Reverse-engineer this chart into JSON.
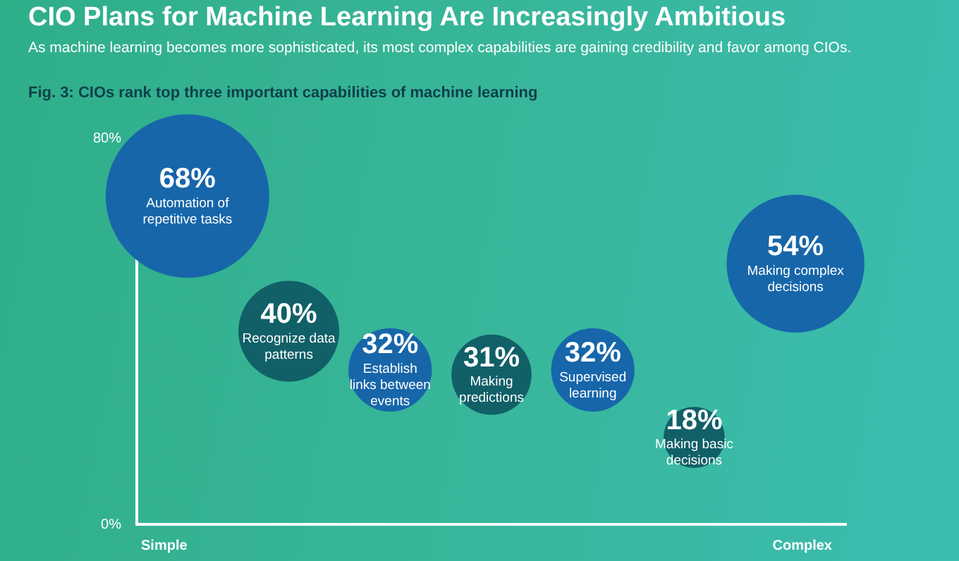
{
  "chart_data": {
    "type": "bubble",
    "title": "CIO Plans for Machine Learning Are Increasingly Ambitious",
    "subtitle": "As machine learning becomes more sophisticated, its most complex capabilities are gaining credibility and favor among CIOs.",
    "annotations": [
      "Fig. 3: CIOs rank top three important capabilities of machine learning",
      "Simple",
      "Complex"
    ],
    "categories": [
      null,
      null,
      null,
      null,
      null,
      null,
      null
    ],
    "values": [
      68,
      40,
      32,
      31,
      32,
      18,
      54
    ],
    "value_labels": [
      "68%\nAutomation of\nrepetitive tasks",
      "40%\nRecognize data\npatterns",
      "32%\nEstablish\nlinks between\nevents",
      "31%\nMaking\npredictions",
      "32%\nSupervised\nlearning",
      "18%\nMaking basic\ndecisions",
      "54%\nMaking complex\ndecisions"
    ],
    "sizes": [
      1,
      0.38,
      0.26,
      0.24,
      0.26,
      0.14,
      0.71
    ],
    "colors": [
      "#1766aa",
      "#116068",
      "#1766aa",
      "#116068",
      "#1766aa",
      "#116068",
      "#1766aa"
    ],
    "ylim": [
      0,
      80
    ],
    "yticks": [
      {
        "value": 0,
        "label": "0%"
      },
      {
        "value": 80,
        "label": "80%"
      }
    ]
  }
}
